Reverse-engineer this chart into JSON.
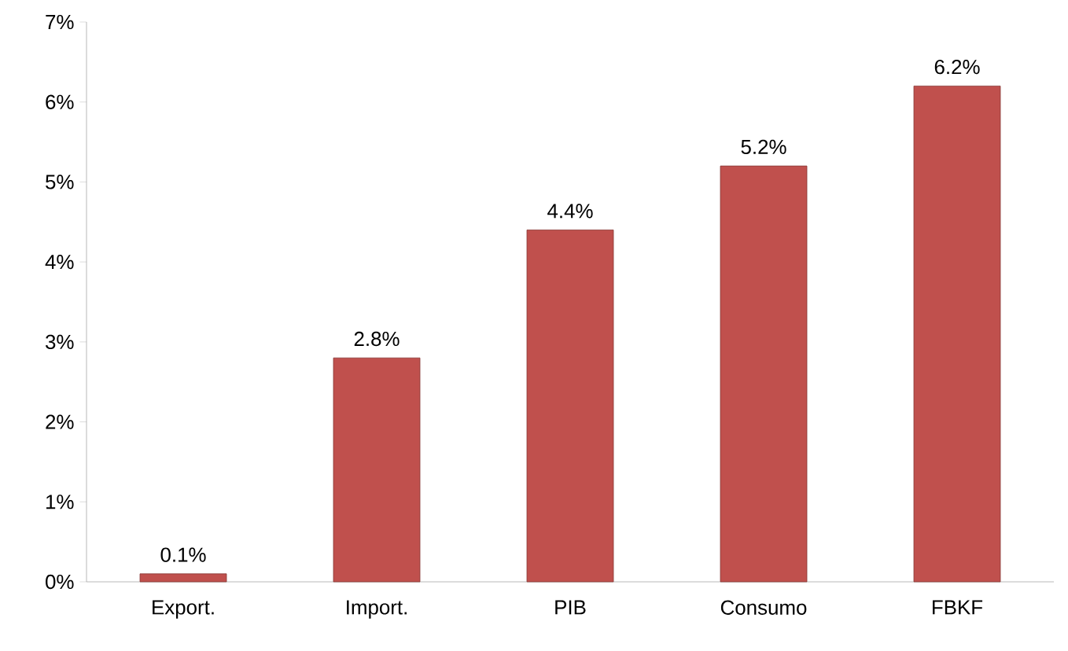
{
  "chart_data": {
    "type": "bar",
    "categories": [
      "Export.",
      "Import.",
      "PIB",
      "Consumo",
      "FBKF"
    ],
    "values": [
      0.1,
      2.8,
      4.4,
      5.2,
      6.2
    ],
    "value_labels": [
      "0.1%",
      "2.8%",
      "4.4%",
      "5.2%",
      "6.2%"
    ],
    "color": "#c0504d",
    "ylim": [
      0,
      7
    ],
    "yticks": [
      {
        "value": 0,
        "label": "0%"
      },
      {
        "value": 1,
        "label": "1%"
      },
      {
        "value": 2,
        "label": "2%"
      },
      {
        "value": 3,
        "label": "3%"
      },
      {
        "value": 4,
        "label": "4%"
      },
      {
        "value": 5,
        "label": "5%"
      },
      {
        "value": 6,
        "label": "6%"
      },
      {
        "value": 7,
        "label": "7%"
      }
    ],
    "grid": false
  }
}
